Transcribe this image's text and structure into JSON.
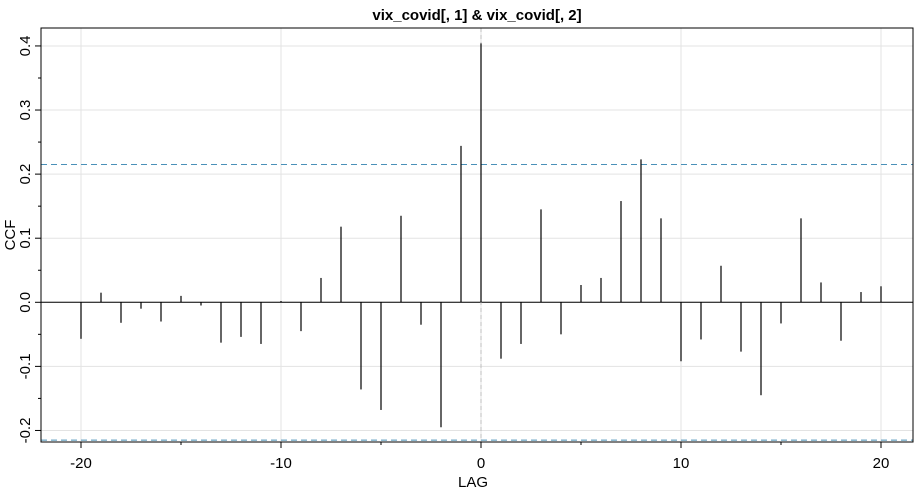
{
  "chart_data": {
    "type": "bar",
    "title": "vix_covid[, 1] & vix_covid[, 2]",
    "xlabel": "LAG",
    "ylabel": "CCF",
    "xlim": [
      -22,
      21.6
    ],
    "ylim": [
      -0.218,
      0.428
    ],
    "grid": true,
    "x_ticks": [
      -20,
      -10,
      0,
      10,
      20
    ],
    "x_tick_labels": [
      "-20",
      "-10",
      "0",
      "10",
      "20"
    ],
    "y_ticks": [
      -0.2,
      -0.1,
      0.0,
      0.1,
      0.2,
      0.3,
      0.4
    ],
    "y_tick_labels": [
      "-0.2",
      "-0.1",
      "0.0",
      "0.1",
      "0.2",
      "0.3",
      "0.4"
    ],
    "confidence_bounds": [
      0.215,
      -0.215
    ],
    "colors": {
      "bars": "#000000",
      "bounds": "#4a90b8",
      "grid": "#e3e3e3",
      "zero_v": "#bdbdbd"
    },
    "lags": [
      -20,
      -19,
      -18,
      -17,
      -16,
      -15,
      -14,
      -13,
      -12,
      -11,
      -10,
      -9,
      -8,
      -7,
      -6,
      -5,
      -4,
      -3,
      -2,
      -1,
      0,
      1,
      2,
      3,
      4,
      5,
      6,
      7,
      8,
      9,
      10,
      11,
      12,
      13,
      14,
      15,
      16,
      17,
      18,
      19,
      20
    ],
    "values": [
      -0.057,
      0.015,
      -0.032,
      -0.01,
      -0.03,
      0.01,
      -0.005,
      -0.063,
      -0.054,
      -0.065,
      0.002,
      -0.045,
      0.038,
      0.118,
      -0.136,
      -0.168,
      0.135,
      -0.035,
      -0.195,
      0.244,
      0.404,
      -0.088,
      -0.065,
      0.145,
      -0.05,
      0.027,
      0.038,
      0.158,
      0.223,
      0.131,
      -0.092,
      -0.058,
      0.057,
      -0.077,
      -0.145,
      -0.033,
      0.131,
      0.031,
      -0.06,
      0.016,
      0.025
    ]
  }
}
